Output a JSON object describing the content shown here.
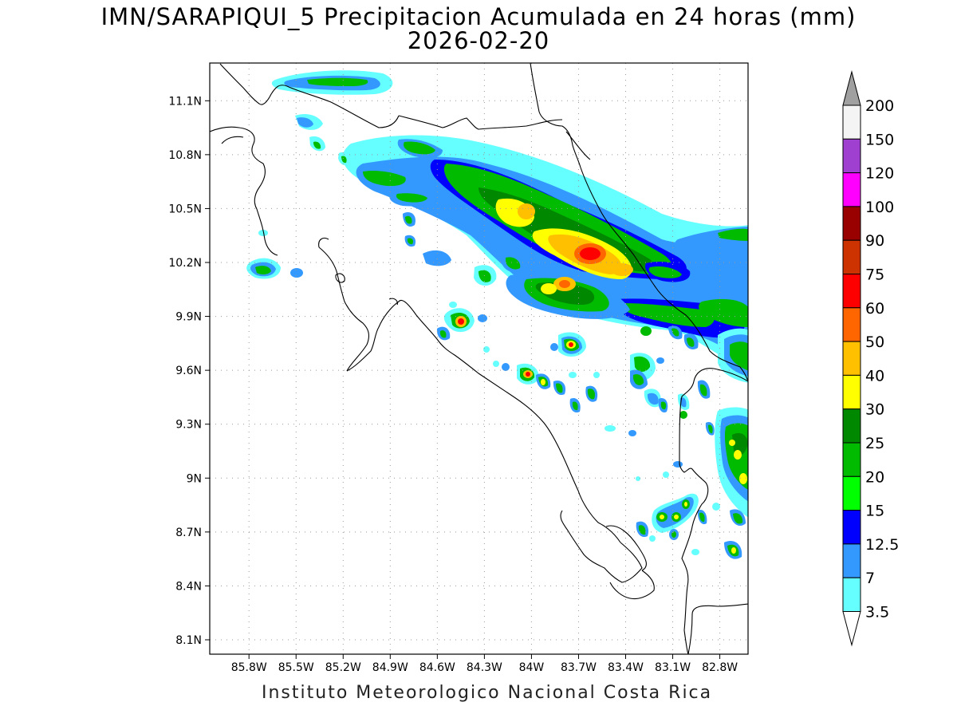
{
  "title": "IMN/SARAPIQUI_5 Precipitacion Acumulada en 24 horas (mm)",
  "subtitle": "2026-02-20",
  "footer": "Instituto Meteorologico Nacional Costa Rica",
  "map": {
    "lon_range": [
      -86.05,
      -82.62
    ],
    "lat_range": [
      8.02,
      11.31
    ],
    "lon_ticks": [
      "85.8W",
      "85.5W",
      "85.2W",
      "84.9W",
      "84.6W",
      "84.3W",
      "84W",
      "83.7W",
      "83.4W",
      "83.1W",
      "82.8W"
    ],
    "lon_values": [
      -85.8,
      -85.5,
      -85.2,
      -84.9,
      -84.6,
      -84.3,
      -84.0,
      -83.7,
      -83.4,
      -83.1,
      -82.8
    ],
    "lat_ticks": [
      "11.1N",
      "10.8N",
      "10.5N",
      "10.2N",
      "9.9N",
      "9.6N",
      "9.3N",
      "9N",
      "8.7N",
      "8.4N",
      "8.1N"
    ],
    "lat_values": [
      11.1,
      10.8,
      10.5,
      10.2,
      9.9,
      9.6,
      9.3,
      9.0,
      8.7,
      8.4,
      8.1
    ],
    "grid": true,
    "grid_style": "dotted"
  },
  "legend": {
    "labels": [
      "200",
      "150",
      "120",
      "100",
      "90",
      "75",
      "60",
      "50",
      "40",
      "30",
      "25",
      "20",
      "15",
      "12.5",
      "7",
      "3.5"
    ],
    "colors": [
      "#a0a0a0",
      "#f4f4f4",
      "#a040d0",
      "#ff00ff",
      "#990000",
      "#cc3300",
      "#ff0000",
      "#ff6600",
      "#ffc000",
      "#ffff00",
      "#008800",
      "#00bb00",
      "#00ff00",
      "#0000ff",
      "#3399ff",
      "#66ffff",
      "#ffffff"
    ],
    "color_names": [
      "over-200",
      "150-200",
      "120-150",
      "100-120",
      "90-100",
      "75-90",
      "60-75",
      "50-60",
      "40-50",
      "30-40",
      "25-30",
      "20-25",
      "15-20",
      "12.5-15",
      "7-12.5",
      "3.5-7",
      "under-3.5"
    ]
  }
}
